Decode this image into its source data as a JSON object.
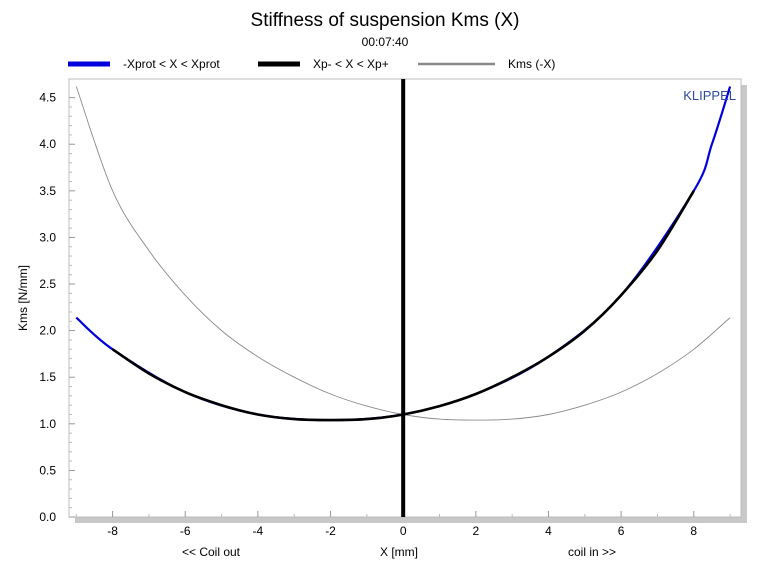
{
  "chart_data": {
    "type": "line",
    "title": "Stiffness of suspension Kms (X)",
    "subtitle": "00:07:40",
    "xlabel": "X [mm]",
    "xlabel_left": "<< Coil out",
    "xlabel_right": "coil in >>",
    "ylabel": "Kms [N/mm]",
    "watermark": "KLIPPEL",
    "xlim": [
      -9.2,
      9.3
    ],
    "ylim": [
      0,
      4.7
    ],
    "xticks": [
      -8,
      -6,
      -4,
      -2,
      0,
      2,
      4,
      6,
      8
    ],
    "yticks": [
      0.0,
      0.5,
      1.0,
      1.5,
      2.0,
      2.5,
      3.0,
      3.5,
      4.0,
      4.5
    ],
    "ytick_labels": [
      "0.0",
      "0.5",
      "1.0",
      "1.5",
      "2.0",
      "2.5",
      "3.0",
      "3.5",
      "4.0",
      "4.5"
    ],
    "grid": false,
    "legend_position": "top",
    "legend": [
      {
        "label": "-Xprot < X < Xprot",
        "color": "#0000dd"
      },
      {
        "label": "Xp- < X < Xp+",
        "color": "#000000"
      },
      {
        "label": "Kms (-X)",
        "color": "#8a8a8a"
      }
    ],
    "vline_x": 0,
    "series": [
      {
        "name": "-Xprot < X < Xprot",
        "color": "#0000dd",
        "x": [
          -9,
          -8,
          -6,
          -4,
          -2,
          0,
          2,
          4,
          6,
          8,
          8.5,
          9
        ],
        "y": [
          2.14,
          1.8,
          1.34,
          1.1,
          1.04,
          1.1,
          1.32,
          1.72,
          2.38,
          3.5,
          4.0,
          4.62
        ]
      },
      {
        "name": "Xp- < X < Xp+",
        "color": "#000000",
        "x": [
          -8,
          -7,
          -6,
          -5,
          -4,
          -3,
          -2,
          -1,
          0,
          1,
          2,
          3,
          4,
          5,
          6,
          7,
          8
        ],
        "y": [
          1.8,
          1.54,
          1.34,
          1.2,
          1.1,
          1.05,
          1.04,
          1.05,
          1.1,
          1.19,
          1.32,
          1.5,
          1.72,
          2.0,
          2.38,
          2.86,
          3.5
        ]
      },
      {
        "name": "Kms (-X)",
        "color": "#8a8a8a",
        "x": [
          -9,
          -8,
          -7,
          -6,
          -5,
          -4,
          -3,
          -2,
          -1,
          0,
          1,
          2,
          3,
          4,
          5,
          6,
          7,
          8,
          9
        ],
        "y": [
          4.62,
          3.5,
          2.86,
          2.38,
          2.0,
          1.72,
          1.5,
          1.32,
          1.19,
          1.1,
          1.05,
          1.04,
          1.05,
          1.1,
          1.2,
          1.34,
          1.54,
          1.8,
          2.14
        ]
      }
    ]
  }
}
